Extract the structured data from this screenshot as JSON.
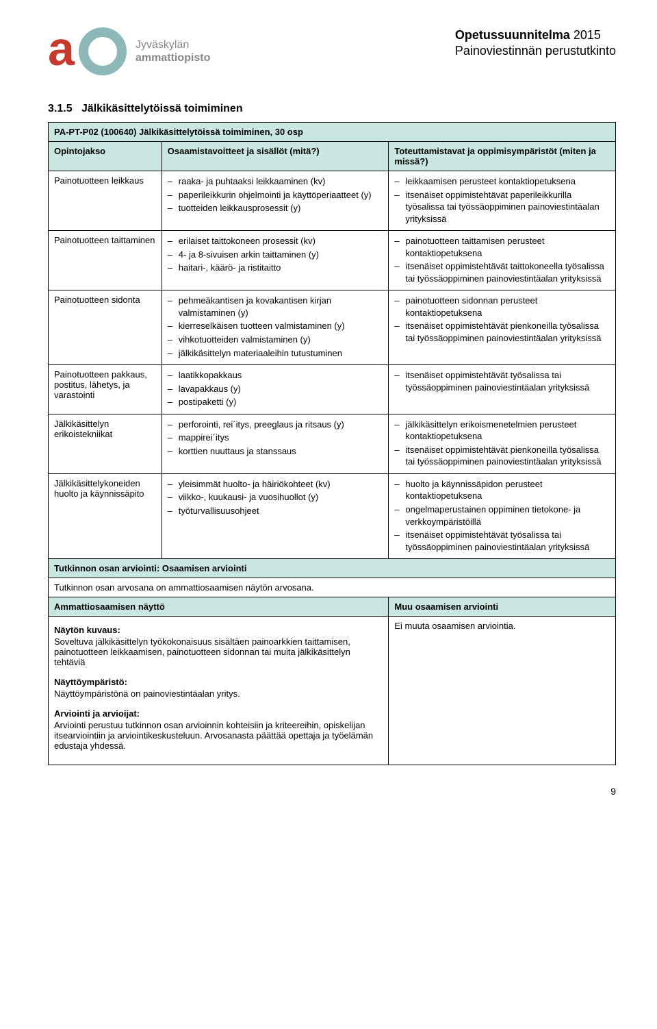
{
  "header": {
    "logo_line1": "Jyväskylän",
    "logo_line2": "ammattiopisto",
    "doc_line1_bold": "Opetussuunnitelma",
    "doc_line1_rest": " 2015",
    "doc_line2": "Painoviestinnän perustutkinto"
  },
  "section_heading_num": "3.1.5",
  "section_heading_text": "Jälkikäsittelytöissä toimiminen",
  "table": {
    "title": "PA-PT-P02 (100640) Jälkikäsittelytöissä toimiminen, 30 osp",
    "head_col1": "Opintojakso",
    "head_col2": "Osaamistavoitteet ja sisällöt (mitä?)",
    "head_col3": "Toteuttamistavat ja oppimisympäristöt (miten ja missä?)",
    "rows": [
      {
        "label": "Painotuotteen leikkaus",
        "mid": [
          "raaka- ja puhtaaksi leikkaaminen (kv)",
          "paperileikkurin ohjelmointi ja käyttöperiaatteet (y)",
          "tuotteiden leikkausprosessit (y)"
        ],
        "right": [
          "leikkaamisen perusteet kontaktiopetuksena",
          "itsenäiset oppimistehtävät paperileikkurilla työsalissa tai työssäoppiminen painoviestintäalan yrityksissä"
        ]
      },
      {
        "label": "Painotuotteen taittaminen",
        "mid": [
          "erilaiset taittokoneen prosessit (kv)",
          "4- ja 8-sivuisen arkin taittaminen (y)",
          "haitari-, käärö- ja ristitaitto"
        ],
        "right": [
          "painotuotteen taittamisen perusteet kontaktiopetuksena",
          "itsenäiset oppimistehtävät taittokoneella työsalissa tai työssäoppiminen painoviestintäalan yrityksissä"
        ]
      },
      {
        "label": "Painotuotteen sidonta",
        "mid": [
          "pehmeäkantisen ja kovakantisen kirjan valmistaminen (y)",
          "kierreselkäisen tuotteen valmistaminen (y)",
          "vihkotuotteiden valmistaminen (y)",
          "jälkikäsittelyn materiaaleihin tutustuminen"
        ],
        "right": [
          "painotuotteen sidonnan perusteet kontaktiopetuksena",
          "itsenäiset oppimistehtävät pienkoneilla työsalissa tai työssäoppiminen painoviestintäalan yrityksissä"
        ]
      },
      {
        "label": "Painotuotteen pakkaus, postitus, lähetys, ja varastointi",
        "mid": [
          "laatikkopakkaus",
          "lavapakkaus (y)",
          "postipaketti (y)"
        ],
        "right": [
          "itsenäiset oppimistehtävät työsalissa tai työssäoppiminen painoviestintäalan yrityksissä"
        ]
      },
      {
        "label": "Jälkikäsittelyn erikoistekniikat",
        "mid": [
          "perforointi, rei´itys, preeglaus ja ritsaus (y)",
          "mappirei´itys",
          "korttien nuuttaus ja stanssaus"
        ],
        "right": [
          "jälkikäsittelyn erikoismenetelmien perusteet kontaktiopetuksena",
          "itsenäiset oppimistehtävät pienkoneilla työsalissa tai työssäoppiminen painoviestintäalan yrityksissä"
        ]
      },
      {
        "label": "Jälkikäsittelykoneiden huolto ja käynnissäpito",
        "mid": [
          "yleisimmät huolto- ja häiriökohteet (kv)",
          "viikko-, kuukausi- ja vuosihuollot (y)",
          "työturvallisuusohjeet"
        ],
        "right": [
          "huolto ja käynnissäpidon perusteet kontaktiopetuksena",
          "ongelmaperustainen oppiminen tietokone- ja verkkoympäristöillä",
          "itsenäiset oppimistehtävät työsalissa tai työssäoppiminen painoviestintäalan yrityksissä"
        ]
      }
    ],
    "section2_title": "Tutkinnon osan arviointi: Osaamisen arviointi",
    "section2_line": "Tutkinnon osan arvosana on ammattiosaamisen näytön arvosana.",
    "section3_left_title": "Ammattiosaamisen näyttö",
    "section3_right_title": "Muu osaamisen arviointi",
    "naytto_kuvaus_title": "Näytön kuvaus:",
    "naytto_kuvaus_text": "Soveltuva jälkikäsittelyn työkokonaisuus sisältäen painoarkkien taittamisen, painotuotteen leikkaamisen, painotuotteen sidonnan tai muita jälkikäsittelyn tehtäviä",
    "naytto_ymparisto_title": "Näyttöympäristö:",
    "naytto_ymparisto_text": "Näyttöympäristönä on painoviestintäalan yritys.",
    "arviointi_title": "Arviointi ja arvioijat:",
    "arviointi_text": "Arviointi perustuu tutkinnon osan arvioinnin kohteisiin ja kriteereihin, opiskelijan itsearviointiin ja arviointikeskusteluun. Arvosanasta päättää opettaja ja työelämän edustaja yhdessä.",
    "ei_muuta": "Ei muuta osaamisen arviointia."
  },
  "page_number": "9",
  "colors": {
    "band": "#c9e6e0",
    "logo_a": "#c63a2e",
    "logo_o": "#8eb8b8",
    "text_gray": "#888888"
  }
}
